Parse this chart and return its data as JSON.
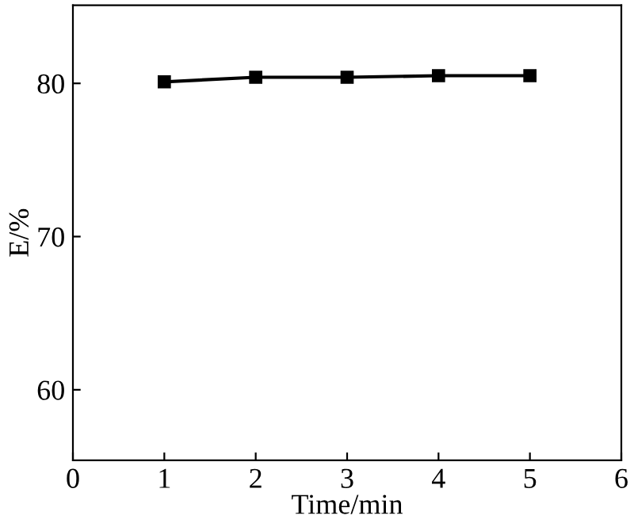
{
  "chart_data": {
    "type": "line",
    "xlabel": "Time/min",
    "ylabel": "E/%",
    "x": [
      1,
      2,
      3,
      4,
      5
    ],
    "series": [
      {
        "color": "#000000",
        "values": [
          80.1,
          80.4,
          80.4,
          80.5,
          80.5
        ]
      }
    ],
    "xlim": [
      0,
      6
    ],
    "xticks": [
      0,
      1,
      2,
      3,
      4,
      5,
      6
    ],
    "ylim": [
      55.4,
      85.1
    ],
    "yticks": [
      60,
      70,
      80
    ],
    "marker": "square",
    "line_style": "solid",
    "grid": false,
    "legend": false
  }
}
